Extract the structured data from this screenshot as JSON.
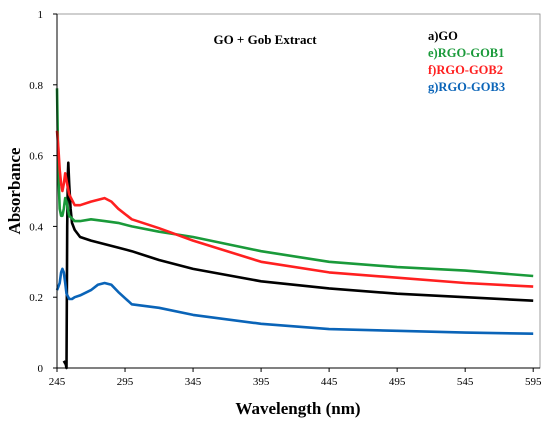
{
  "chart_data": {
    "type": "line",
    "title": "GO + Gob Extract",
    "xlabel": "Wavelength (nm)",
    "ylabel": "Absorbance",
    "xlim": [
      245,
      600
    ],
    "ylim": [
      0,
      1
    ],
    "xticks": [
      "245",
      "295",
      "345",
      "395",
      "445",
      "495",
      "545",
      "595"
    ],
    "yticks": [
      "0",
      "0.2",
      "0.4",
      "0.6",
      "0.8",
      "1"
    ],
    "grid": false,
    "legend_position": "top-right",
    "series": [
      {
        "name": "a)GO",
        "color": "#000000",
        "x": [
          250,
          251.5,
          252,
          252.5,
          253,
          253.3,
          254,
          255,
          256,
          258,
          262,
          270,
          280,
          290,
          300,
          320,
          345,
          395,
          445,
          495,
          545,
          595
        ],
        "y": [
          0.02,
          0.01,
          0.0,
          0.4,
          0.55,
          0.58,
          0.52,
          0.45,
          0.41,
          0.39,
          0.37,
          0.36,
          0.35,
          0.34,
          0.33,
          0.305,
          0.28,
          0.245,
          0.225,
          0.21,
          0.2,
          0.19
        ]
      },
      {
        "name": "e)RGO-GOB1",
        "color": "#1a9a3a",
        "x": [
          245,
          246,
          247,
          248,
          249,
          250,
          251,
          252,
          254,
          258,
          262,
          270,
          280,
          290,
          300,
          320,
          345,
          395,
          445,
          495,
          545,
          595
        ],
        "y": [
          0.79,
          0.55,
          0.45,
          0.43,
          0.43,
          0.45,
          0.48,
          0.47,
          0.43,
          0.415,
          0.415,
          0.42,
          0.415,
          0.41,
          0.4,
          0.385,
          0.37,
          0.33,
          0.3,
          0.285,
          0.275,
          0.26
        ]
      },
      {
        "name": "f)RGO-GOB2",
        "color": "#ff2020",
        "x": [
          245,
          246,
          247,
          248,
          249,
          250,
          251,
          252,
          254,
          258,
          262,
          270,
          280,
          285,
          290,
          300,
          320,
          345,
          395,
          445,
          495,
          545,
          595
        ],
        "y": [
          0.67,
          0.62,
          0.56,
          0.52,
          0.5,
          0.52,
          0.55,
          0.53,
          0.49,
          0.46,
          0.46,
          0.47,
          0.48,
          0.47,
          0.45,
          0.42,
          0.395,
          0.36,
          0.3,
          0.27,
          0.255,
          0.24,
          0.23
        ]
      },
      {
        "name": "g)RGO-GOB3",
        "color": "#0a64b8",
        "x": [
          245,
          246,
          247,
          248,
          249,
          250,
          251,
          252,
          254,
          256,
          258,
          262,
          270,
          275,
          280,
          285,
          290,
          300,
          320,
          345,
          395,
          445,
          495,
          545,
          595
        ],
        "y": [
          0.22,
          0.23,
          0.24,
          0.27,
          0.28,
          0.27,
          0.24,
          0.21,
          0.195,
          0.195,
          0.2,
          0.205,
          0.22,
          0.235,
          0.24,
          0.235,
          0.215,
          0.18,
          0.17,
          0.15,
          0.125,
          0.11,
          0.105,
          0.1,
          0.097
        ]
      }
    ]
  }
}
